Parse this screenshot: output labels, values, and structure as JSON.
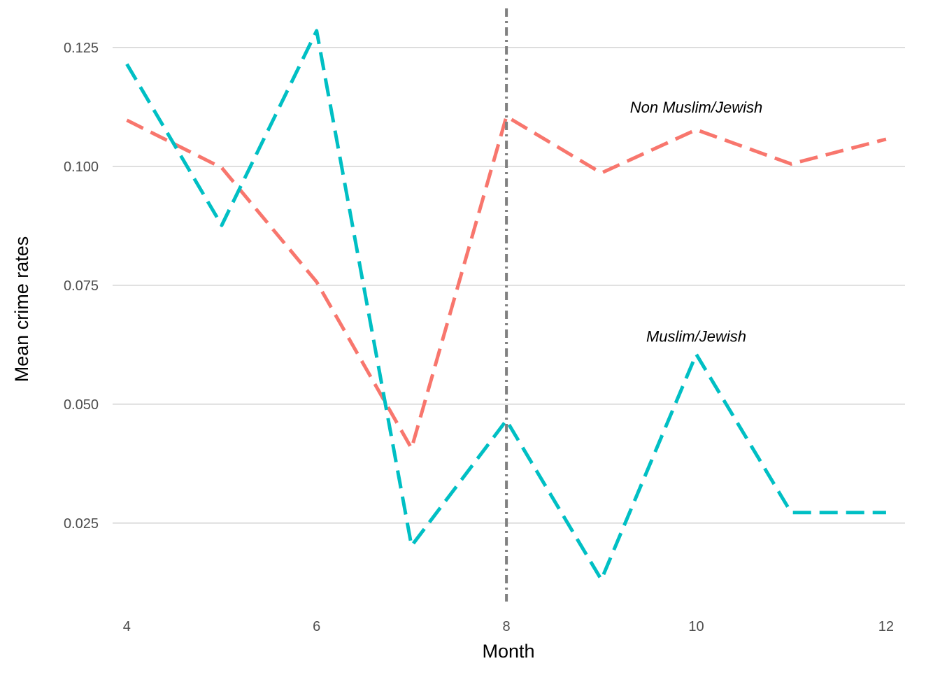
{
  "chart_data": {
    "type": "line",
    "title": "",
    "xlabel": "Month",
    "ylabel": "Mean crime rates",
    "x": [
      4,
      5,
      6,
      7,
      8,
      9,
      10,
      11,
      12
    ],
    "xlim": [
      3.85,
      12.2
    ],
    "ylim": [
      0.0085,
      0.1335
    ],
    "x_ticks": [
      4,
      6,
      8,
      10,
      12
    ],
    "x_tick_labels": [
      "4",
      "6",
      "8",
      "10",
      "12"
    ],
    "y_ticks": [
      0.025,
      0.05,
      0.075,
      0.1,
      0.125
    ],
    "y_tick_labels": [
      "0.025",
      "0.050",
      "0.075",
      "0.100",
      "0.125"
    ],
    "grid": "horizontal",
    "legend": "none",
    "series": [
      {
        "values": [
          0.1097,
          0.0997,
          0.0757,
          0.0407,
          0.1105,
          0.0986,
          0.1077,
          0.1005,
          0.1057
        ],
        "color": "#F8766D",
        "line_style": "dashed"
      },
      {
        "values": [
          0.1215,
          0.0876,
          0.1285,
          0.0202,
          0.0466,
          0.0131,
          0.0605,
          0.0272,
          0.0272
        ],
        "color": "#00BFC4",
        "line_style": "dashed"
      }
    ],
    "annotations": [
      {
        "text": "Non Muslim/Jewish",
        "x": 10,
        "y": 0.1113
      },
      {
        "text": "Muslim/Jewish",
        "x": 10,
        "y": 0.0631
      }
    ],
    "reference_line": {
      "axis": "x",
      "value": 8,
      "color": "#808080",
      "line_style": "dotdash"
    }
  }
}
